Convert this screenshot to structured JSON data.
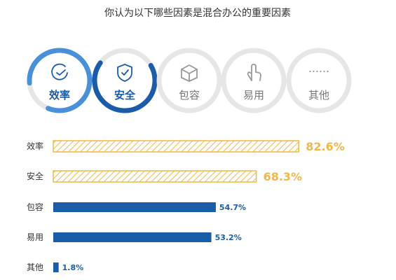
{
  "title": "你认为以下哪些因素是混合办公的重要因素",
  "icon_row": [
    {
      "label": "效率",
      "icon": "clock-check-icon",
      "ring_progress": 0.826,
      "highlight": true
    },
    {
      "label": "安全",
      "icon": "shield-check-icon",
      "ring_progress": 0.683,
      "highlight": true
    },
    {
      "label": "包容",
      "icon": "box-icon",
      "ring_progress": 0,
      "highlight": false
    },
    {
      "label": "易用",
      "icon": "pointer-hand-icon",
      "ring_progress": 0,
      "highlight": false
    },
    {
      "label": "其他",
      "icon": "dots-icon",
      "ring_progress": 0,
      "highlight": false
    }
  ],
  "colors": {
    "accent_blue": "#1a5ca8",
    "light_blue": "#4a90d9",
    "gold": "#f0b84a",
    "ring_grey": "#e6e6e6",
    "icon_grey": "#999999",
    "text": "#333333"
  },
  "chart_data": {
    "type": "bar",
    "orientation": "horizontal",
    "title": "你认为以下哪些因素是混合办公的重要因素",
    "categories": [
      "效率",
      "安全",
      "包容",
      "易用",
      "其他"
    ],
    "values": [
      82.6,
      68.3,
      54.7,
      53.2,
      1.8
    ],
    "value_labels": [
      "82.6%",
      "68.3%",
      "54.7%",
      "53.2%",
      "1.8%"
    ],
    "highlighted": [
      true,
      true,
      false,
      false,
      false
    ],
    "xlim": [
      0,
      100
    ],
    "xlabel": "",
    "ylabel": "",
    "grid": false,
    "legend": "none"
  }
}
